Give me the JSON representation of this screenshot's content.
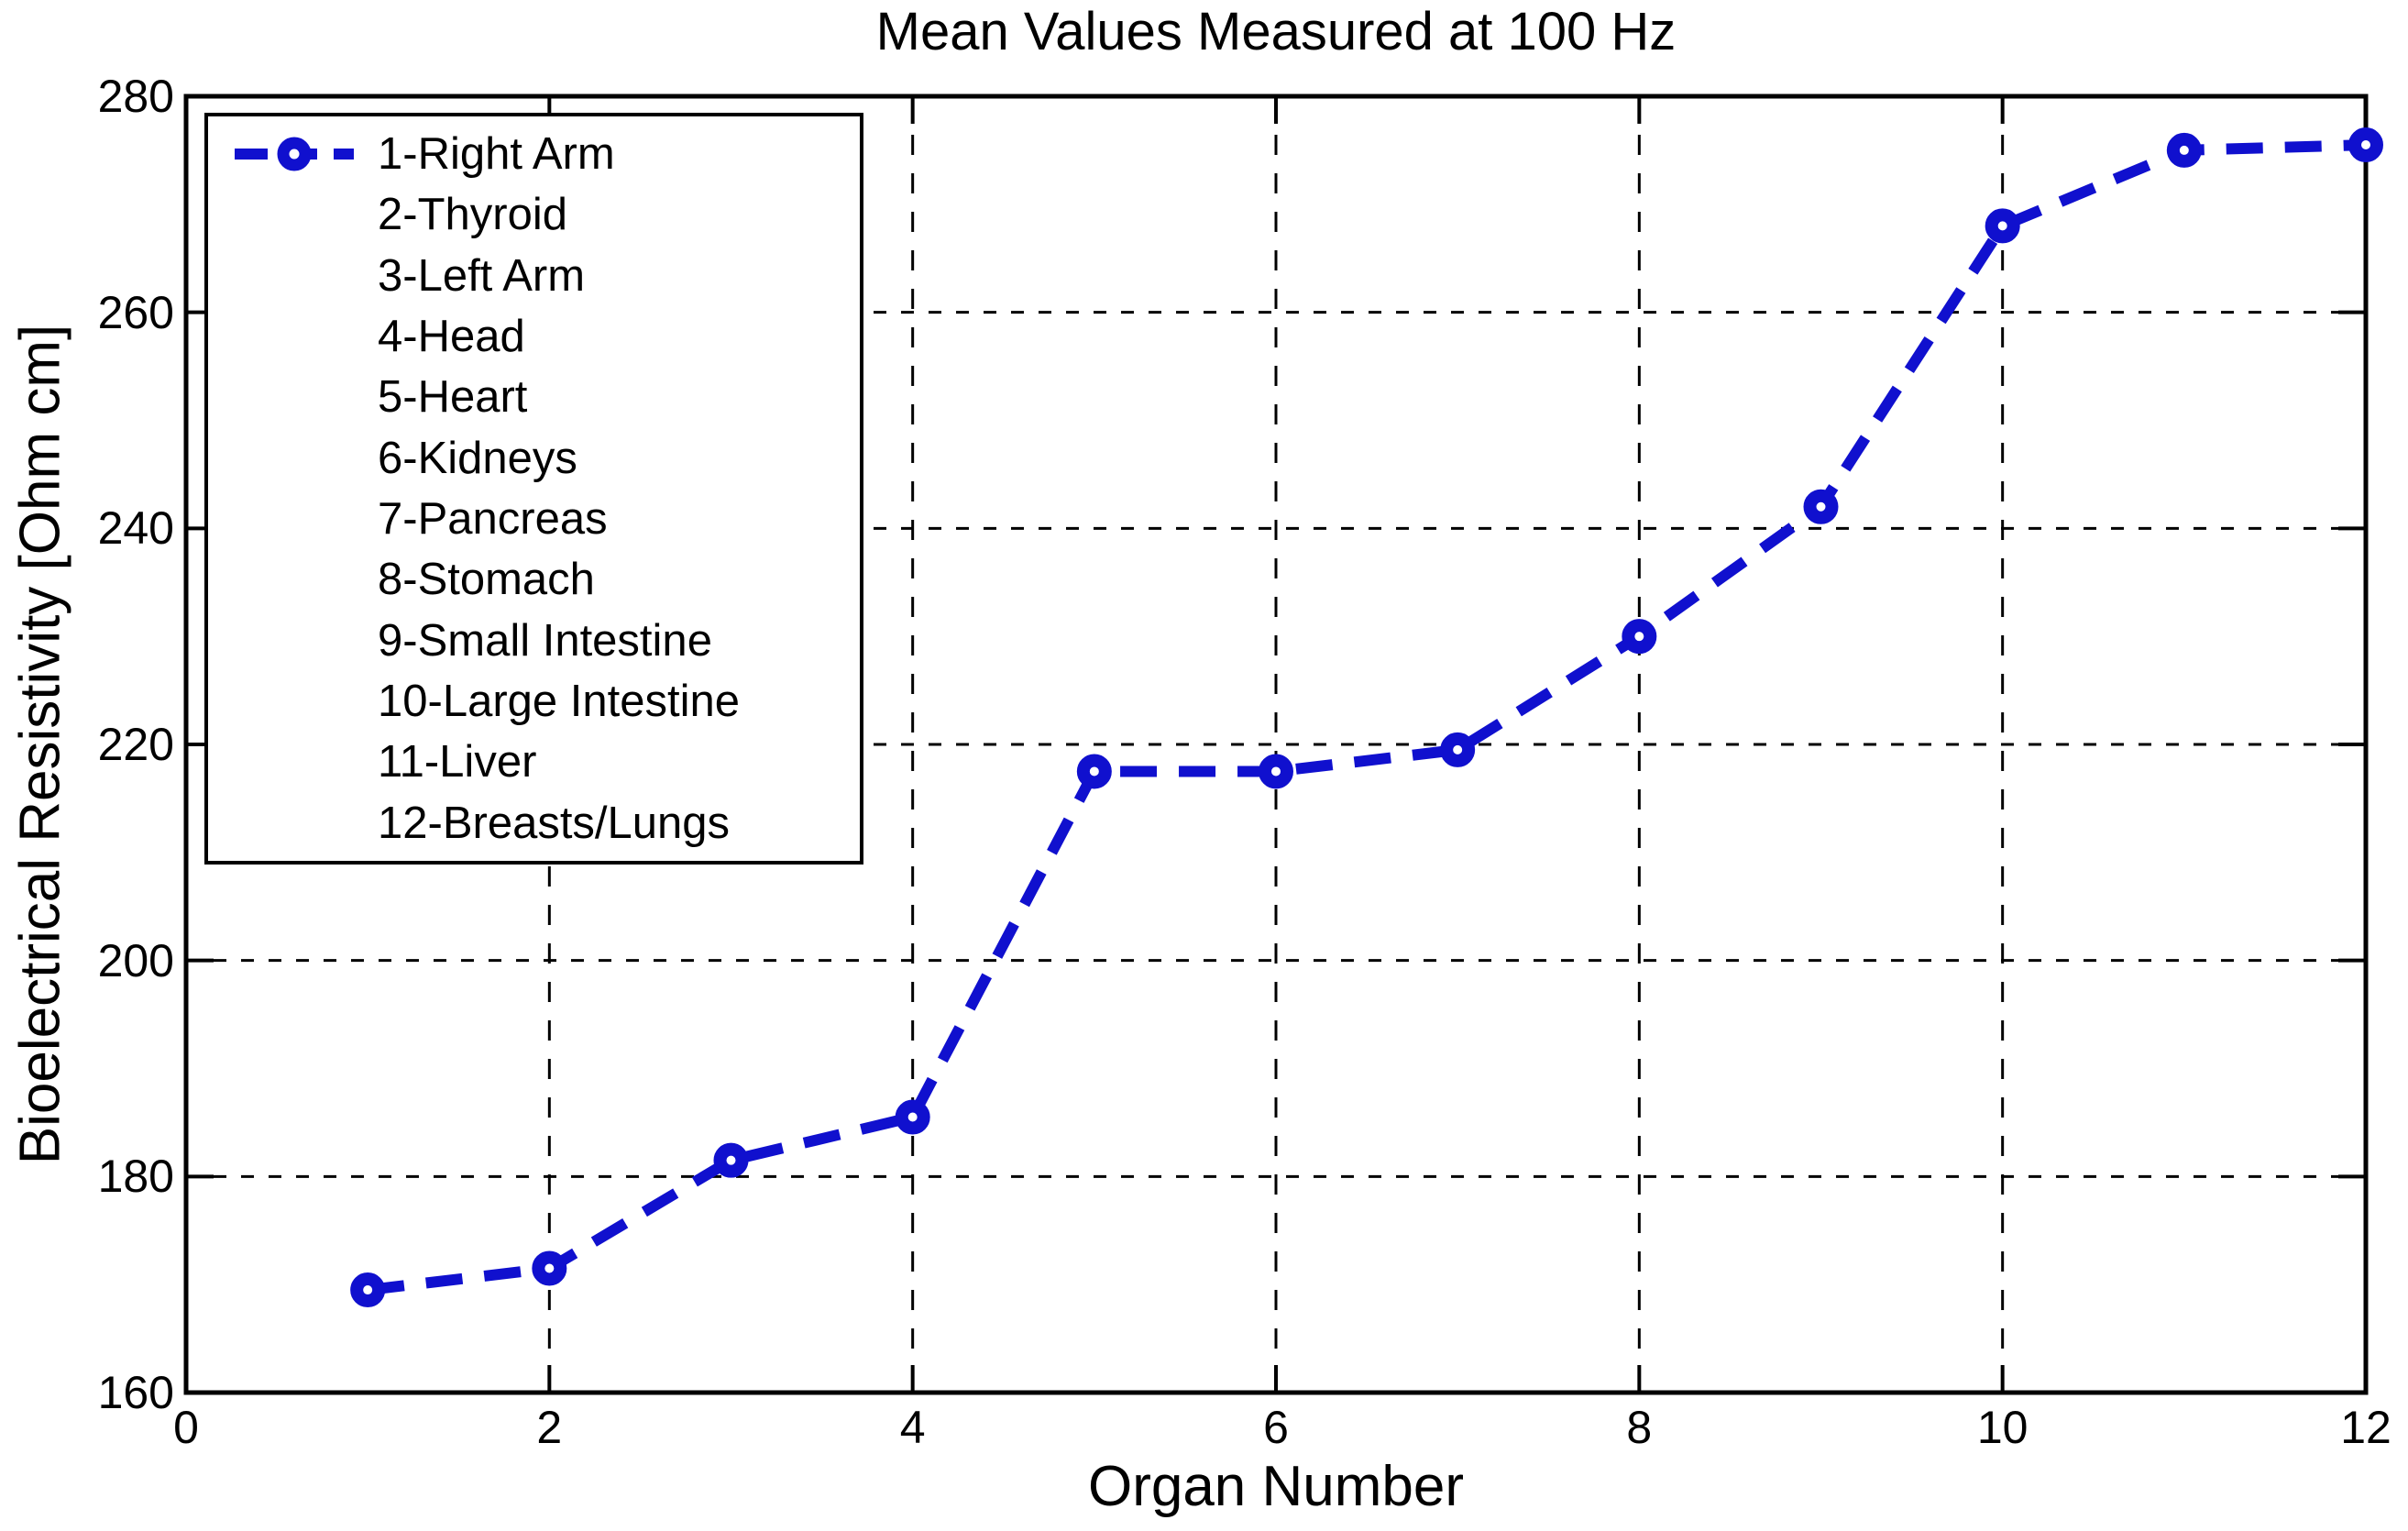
{
  "chart_data": {
    "type": "line",
    "title": "Mean Values Measured at 100 Hz",
    "xlabel": "Organ Number",
    "ylabel": "Bioelectrical Resistivity [Ohm cm]",
    "x": [
      1,
      2,
      3,
      4,
      5,
      6,
      7,
      8,
      9,
      10,
      11,
      12
    ],
    "y": [
      169.5,
      171.5,
      181.5,
      185.5,
      217.5,
      217.5,
      219.5,
      230,
      242,
      268,
      275,
      275.5
    ],
    "xlim": [
      0,
      12
    ],
    "ylim": [
      160,
      280
    ],
    "x_ticks": [
      0,
      2,
      4,
      6,
      8,
      10,
      12
    ],
    "y_ticks": [
      160,
      180,
      200,
      220,
      240,
      260,
      280
    ],
    "grid": true,
    "legend_position": "upper-left",
    "line_color": "#1010CE",
    "line_style": "dashed",
    "marker": "circle",
    "legend_items": [
      "1-Right Arm",
      "2-Thyroid",
      "3-Left Arm",
      "4-Head",
      "5-Heart",
      "6-Kidneys",
      "7-Pancreas",
      "8-Stomach",
      "9-Small Intestine",
      "10-Large Intestine",
      "11-Liver",
      "12-Breasts/Lungs"
    ]
  }
}
